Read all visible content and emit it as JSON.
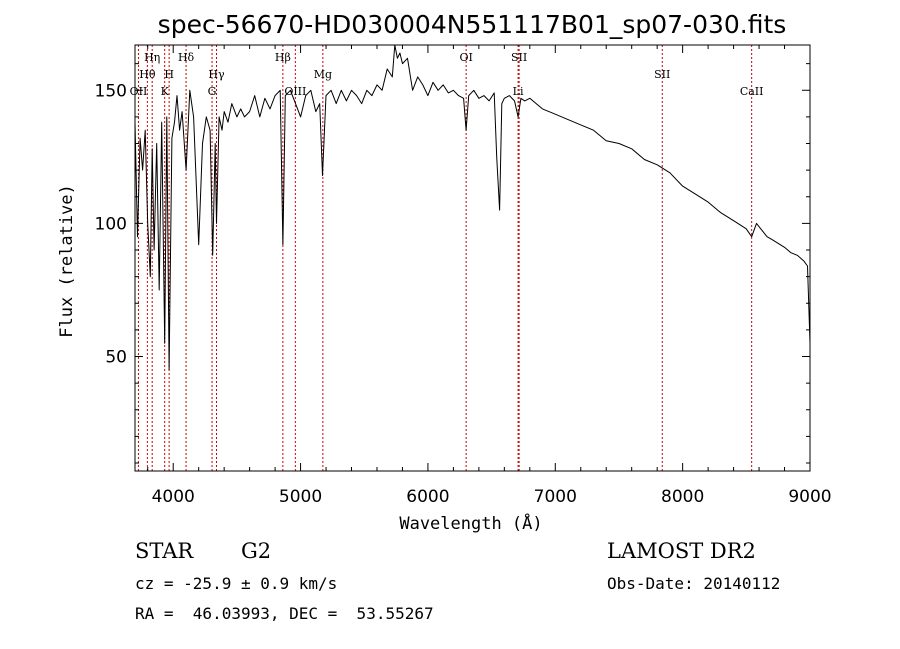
{
  "chart_data": {
    "type": "line",
    "title": "spec-56670-HD030004N551117B01_sp07-030.fits",
    "xlabel": "Wavelength (Å)",
    "ylabel": "Flux (relative)",
    "xlim": [
      3700,
      9000
    ],
    "ylim": [
      7,
      167
    ],
    "x_ticks": [
      4000,
      5000,
      6000,
      7000,
      8000,
      9000
    ],
    "y_ticks": [
      50,
      100,
      150
    ],
    "grid": false,
    "series": [
      {
        "x": [
          3700,
          3720,
          3740,
          3760,
          3780,
          3800,
          3820,
          3835,
          3850,
          3870,
          3890,
          3910,
          3933,
          3950,
          3968,
          3990,
          4010,
          4030,
          4050,
          4070,
          4101,
          4130,
          4160,
          4200,
          4230,
          4260,
          4290,
          4310,
          4330,
          4340,
          4360,
          4383,
          4400,
          4430,
          4460,
          4500,
          4530,
          4560,
          4600,
          4640,
          4680,
          4720,
          4760,
          4800,
          4840,
          4861,
          4880,
          4920,
          4960,
          5000,
          5040,
          5080,
          5120,
          5150,
          5172,
          5200,
          5240,
          5280,
          5320,
          5360,
          5400,
          5440,
          5480,
          5520,
          5560,
          5600,
          5640,
          5680,
          5720,
          5740,
          5760,
          5780,
          5800,
          5840,
          5880,
          5920,
          5960,
          6000,
          6040,
          6080,
          6120,
          6160,
          6200,
          6240,
          6280,
          6300,
          6320,
          6360,
          6400,
          6440,
          6480,
          6520,
          6540,
          6563,
          6580,
          6600,
          6640,
          6680,
          6708,
          6730,
          6760,
          6800,
          6850,
          6900,
          6950,
          7000,
          7100,
          7200,
          7300,
          7400,
          7500,
          7600,
          7700,
          7800,
          7900,
          8000,
          8100,
          8200,
          8300,
          8400,
          8498,
          8542,
          8580,
          8662,
          8700,
          8800,
          8850,
          8900,
          8950,
          8980,
          9000
        ],
        "y": [
          138,
          95,
          132,
          120,
          135,
          100,
          80,
          128,
          90,
          130,
          75,
          138,
          55,
          140,
          45,
          132,
          138,
          148,
          135,
          142,
          120,
          150,
          140,
          92,
          130,
          140,
          135,
          88,
          130,
          100,
          140,
          135,
          142,
          138,
          145,
          140,
          143,
          140,
          142,
          148,
          140,
          147,
          143,
          148,
          150,
          92,
          148,
          150,
          145,
          140,
          148,
          150,
          142,
          145,
          118,
          148,
          150,
          145,
          150,
          146,
          150,
          148,
          145,
          150,
          148,
          152,
          150,
          158,
          155,
          167,
          162,
          164,
          160,
          162,
          150,
          155,
          152,
          148,
          153,
          150,
          152,
          149,
          150,
          148,
          147,
          135,
          148,
          150,
          147,
          148,
          146,
          149,
          125,
          105,
          145,
          147,
          148,
          146,
          140,
          147,
          146,
          147,
          145,
          143,
          142,
          141,
          139,
          137,
          135,
          131,
          130,
          128,
          124,
          122,
          119,
          114,
          111,
          108,
          104,
          101,
          98,
          95,
          100,
          95,
          94,
          91,
          89,
          88,
          86,
          84,
          55
        ]
      }
    ],
    "line_markers": [
      {
        "label": "Hη",
        "wavelength": 3835,
        "row": 0
      },
      {
        "label": "Hθ",
        "wavelength": 3797,
        "row": 1
      },
      {
        "label": "OII",
        "wavelength": 3727,
        "row": 2
      },
      {
        "label": "H",
        "wavelength": 3968,
        "row": 1
      },
      {
        "label": "K",
        "wavelength": 3933,
        "row": 2
      },
      {
        "label": "Hδ",
        "wavelength": 4101,
        "row": 0
      },
      {
        "label": "Hγ",
        "wavelength": 4340,
        "row": 1
      },
      {
        "label": "G",
        "wavelength": 4305,
        "row": 2
      },
      {
        "label": "Hβ",
        "wavelength": 4861,
        "row": 0
      },
      {
        "label": "OIII",
        "wavelength": 4959,
        "row": 2
      },
      {
        "label": "Mg",
        "wavelength": 5175,
        "row": 1
      },
      {
        "label": "OI",
        "wavelength": 6300,
        "row": 0
      },
      {
        "label": "SII",
        "wavelength": 6716,
        "row": 0
      },
      {
        "label": "Li",
        "wavelength": 6708,
        "row": 2
      },
      {
        "label": "SII",
        "wavelength": 7840,
        "row": 1
      },
      {
        "label": "CaII",
        "wavelength": 8542,
        "row": 2
      }
    ],
    "colors": {
      "spectrum": "#000000",
      "marker_line": "#cc0000",
      "axis": "#000000"
    }
  },
  "info": {
    "class_label": "STAR",
    "subclass": "G2",
    "cz": "cz = -25.9 ± 0.9 km/s",
    "radec": "RA =  46.03993, DEC =  53.55267",
    "survey": "LAMOST DR2",
    "obs_date": "Obs-Date: 20140112"
  }
}
